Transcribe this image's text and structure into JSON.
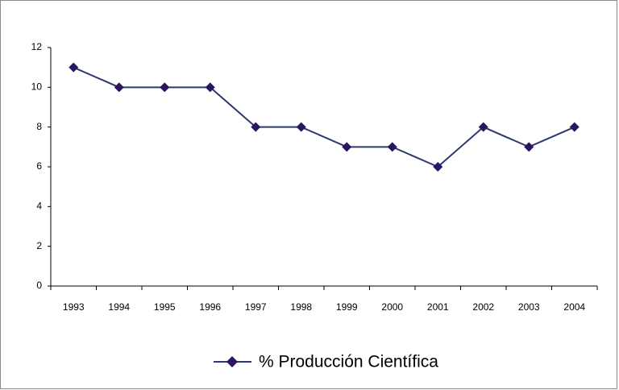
{
  "chart_data": {
    "type": "line",
    "categories": [
      "1993",
      "1994",
      "1995",
      "1996",
      "1997",
      "1998",
      "1999",
      "2000",
      "2001",
      "2002",
      "2003",
      "2004"
    ],
    "series": [
      {
        "name": "% Producción Científica",
        "color": "#2b3a6b",
        "marker_color": "#2a1660",
        "values": [
          11,
          10,
          10,
          10,
          8,
          8,
          7,
          7,
          6,
          8,
          7,
          8
        ]
      }
    ],
    "ylim": [
      0,
      12
    ],
    "yticks": [
      0,
      2,
      4,
      6,
      8,
      10,
      12
    ],
    "grid": false,
    "legend": "bottom"
  }
}
